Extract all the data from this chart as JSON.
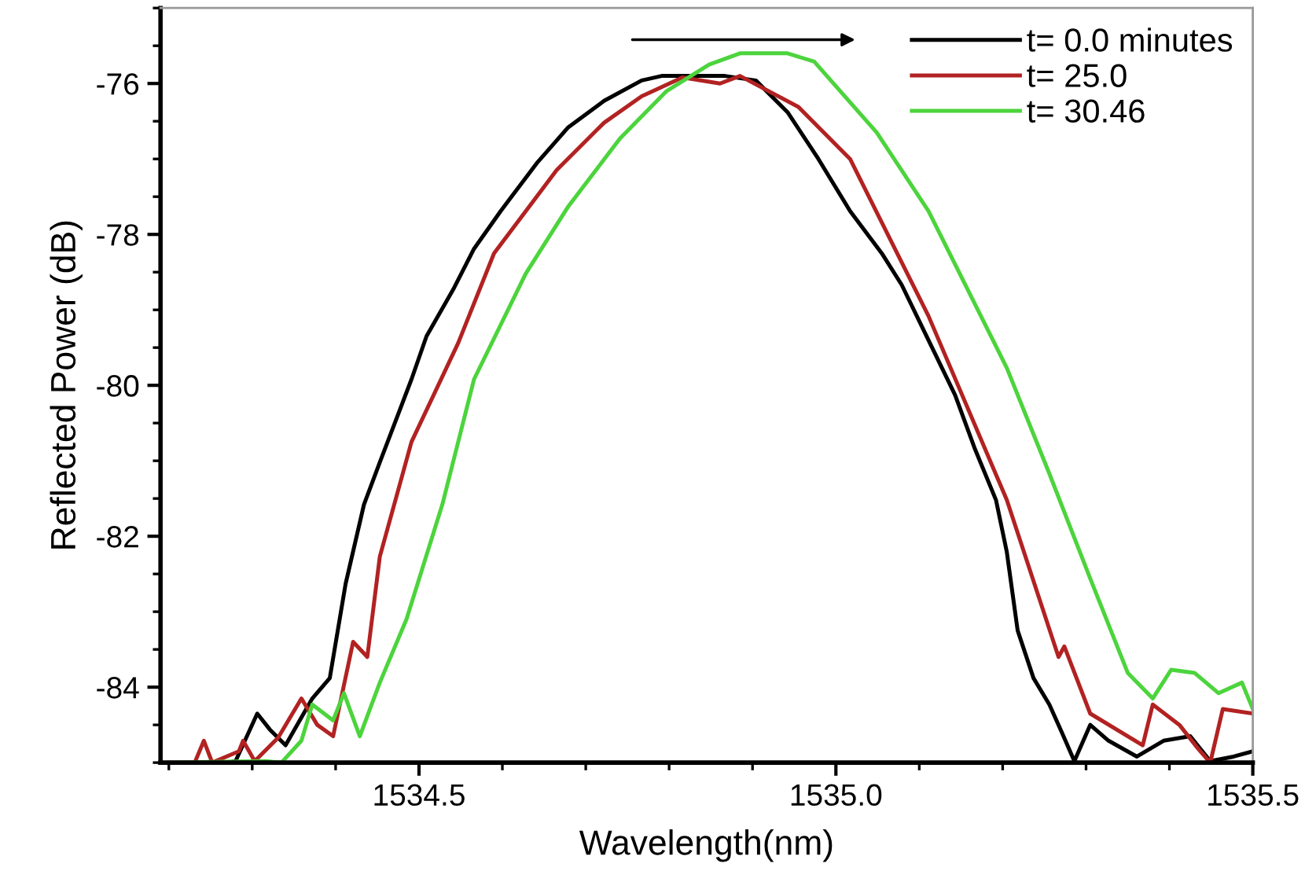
{
  "chart_data": {
    "type": "line",
    "xlabel": "Wavelength(nm)",
    "ylabel": "Reflected Power (dB)",
    "xlim": [
      1534.19,
      1535.5
    ],
    "xticks": [
      {
        "value": 1534.2,
        "label": null
      },
      {
        "value": 1534.3,
        "label": null
      },
      {
        "value": 1534.4,
        "label": null
      },
      1534.5,
      {
        "value": 1534.6,
        "label": null
      },
      {
        "value": 1534.7,
        "label": null
      },
      {
        "value": 1534.8,
        "label": null
      },
      {
        "value": 1534.9,
        "label": null
      },
      {
        "value": 1535.0,
        "label": "1535.0"
      },
      {
        "value": 1535.1,
        "label": null
      },
      {
        "value": 1535.2,
        "label": null
      },
      {
        "value": 1535.3,
        "label": null
      },
      {
        "value": 1535.4,
        "label": null
      },
      1535.5
    ],
    "ylim": [
      -85,
      -75
    ],
    "yticks": [
      {
        "value": -85,
        "label": null
      },
      {
        "value": -84.5,
        "label": null
      },
      -84,
      {
        "value": -83.5,
        "label": null
      },
      {
        "value": -83,
        "label": null
      },
      {
        "value": -82.5,
        "label": null
      },
      -82,
      {
        "value": -81.5,
        "label": null
      },
      {
        "value": -81,
        "label": null
      },
      {
        "value": -80.5,
        "label": null
      },
      -80,
      {
        "value": -79.5,
        "label": null
      },
      {
        "value": -79,
        "label": null
      },
      {
        "value": -78.5,
        "label": null
      },
      -78,
      {
        "value": -77.5,
        "label": null
      },
      {
        "value": -77,
        "label": null
      },
      {
        "value": -76.5,
        "label": null
      },
      -76,
      {
        "value": -75.5,
        "label": null
      },
      {
        "value": -75,
        "label": null
      }
    ],
    "grid": false,
    "legend": "top right",
    "marker": "none",
    "line_style": "solid",
    "series": [
      {
        "name": "t= 0.0 minutes",
        "color": "#000000",
        "x": [
          1534.271,
          1534.28,
          1534.306,
          1534.321,
          1534.34,
          1534.372,
          1534.393,
          1534.412,
          1534.434,
          1534.453,
          1534.491,
          1534.509,
          1534.541,
          1534.566,
          1534.598,
          1534.641,
          1534.679,
          1534.722,
          1534.767,
          1534.791,
          1534.867,
          1534.904,
          1534.942,
          1534.979,
          1535.017,
          1535.055,
          1535.079,
          1535.111,
          1535.143,
          1535.167,
          1535.192,
          1535.205,
          1535.218,
          1535.237,
          1535.256,
          1535.271,
          1535.286,
          1535.305,
          1535.327,
          1535.361,
          1535.393,
          1535.425,
          1535.449,
          1535.477,
          1535.5
        ],
        "values": [
          -85.0,
          -84.98,
          -84.35,
          -84.56,
          -84.77,
          -84.15,
          -83.88,
          -82.63,
          -81.58,
          -81.02,
          -79.92,
          -79.35,
          -78.73,
          -78.19,
          -77.69,
          -77.06,
          -76.58,
          -76.23,
          -75.96,
          -75.9,
          -75.9,
          -75.96,
          -76.38,
          -77.0,
          -77.69,
          -78.25,
          -78.67,
          -79.4,
          -80.13,
          -80.85,
          -81.52,
          -82.21,
          -83.25,
          -83.88,
          -84.23,
          -84.6,
          -84.98,
          -84.5,
          -84.71,
          -84.92,
          -84.71,
          -84.65,
          -84.98,
          -84.92,
          -84.85
        ]
      },
      {
        "name": "t= 25.0",
        "color": "#b22222",
        "x": [
          1534.2,
          1534.231,
          1534.242,
          1534.252,
          1534.284,
          1534.289,
          1534.303,
          1534.331,
          1534.359,
          1534.378,
          1534.397,
          1534.421,
          1534.438,
          1534.453,
          1534.491,
          1534.547,
          1534.59,
          1534.665,
          1534.722,
          1534.767,
          1534.816,
          1534.861,
          1534.885,
          1534.955,
          1535.017,
          1535.111,
          1535.205,
          1535.267,
          1535.274,
          1535.305,
          1535.368,
          1535.38,
          1535.412,
          1535.434,
          1535.449,
          1535.464,
          1535.5
        ],
        "values": [
          -85.0,
          -85.0,
          -84.71,
          -85.0,
          -84.85,
          -84.71,
          -84.98,
          -84.67,
          -84.15,
          -84.5,
          -84.65,
          -83.4,
          -83.6,
          -82.27,
          -80.75,
          -79.44,
          -78.25,
          -77.15,
          -76.52,
          -76.17,
          -75.92,
          -76.0,
          -75.9,
          -76.31,
          -77.0,
          -79.08,
          -81.52,
          -83.6,
          -83.46,
          -84.35,
          -84.77,
          -84.23,
          -84.5,
          -84.81,
          -85.0,
          -84.29,
          -84.35
        ]
      },
      {
        "name": "t= 30.46",
        "color": "#4cd43c",
        "x": [
          1534.2,
          1534.316,
          1534.335,
          1534.359,
          1534.372,
          1534.397,
          1534.41,
          1534.429,
          1534.453,
          1534.485,
          1534.528,
          1534.566,
          1534.628,
          1534.679,
          1534.741,
          1534.797,
          1534.848,
          1534.885,
          1534.942,
          1534.974,
          1535.049,
          1535.111,
          1535.205,
          1535.256,
          1535.305,
          1535.35,
          1535.38,
          1535.402,
          1535.43,
          1535.459,
          1535.487,
          1535.5
        ],
        "values": [
          -85.0,
          -84.98,
          -85.0,
          -84.71,
          -84.23,
          -84.44,
          -84.08,
          -84.65,
          -83.94,
          -83.1,
          -81.58,
          -79.92,
          -78.52,
          -77.63,
          -76.73,
          -76.1,
          -75.75,
          -75.6,
          -75.6,
          -75.71,
          -76.65,
          -77.69,
          -79.77,
          -81.17,
          -82.56,
          -83.81,
          -84.15,
          -83.77,
          -83.81,
          -84.08,
          -83.94,
          -84.29
        ]
      }
    ]
  }
}
